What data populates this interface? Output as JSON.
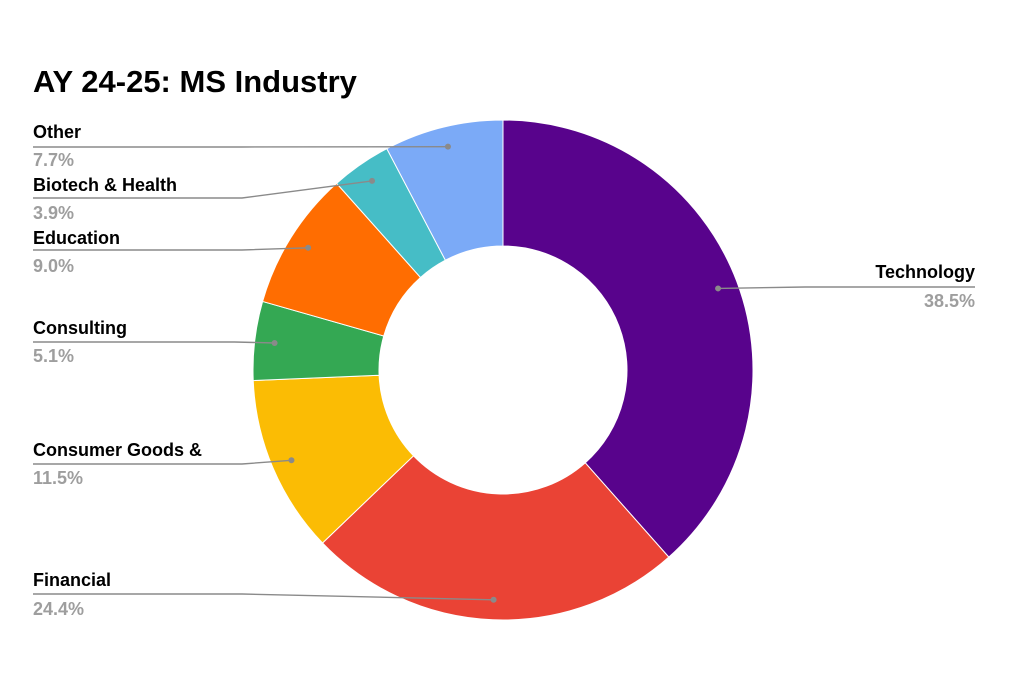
{
  "chart_data": {
    "type": "pie",
    "variant": "donut",
    "title": "AY 24-25: MS Industry",
    "legend": "none",
    "slices": [
      {
        "name": "Technology",
        "label": "Technology",
        "value": 38.5,
        "value_label": "38.5%",
        "color": "#58038c"
      },
      {
        "name": "Financial",
        "label": "Financial",
        "value": 24.4,
        "value_label": "24.4%",
        "color": "#ea4335"
      },
      {
        "name": "Consumer Goods &",
        "label": "Consumer Goods &",
        "value": 11.5,
        "value_label": "11.5%",
        "color": "#fbbc04"
      },
      {
        "name": "Consulting",
        "label": "Consulting",
        "value": 5.1,
        "value_label": "5.1%",
        "color": "#34a853"
      },
      {
        "name": "Education",
        "label": "Education",
        "value": 9.0,
        "value_label": "9.0%",
        "color": "#ff6d01"
      },
      {
        "name": "Biotech & Health",
        "label": "Biotech & Health",
        "value": 3.9,
        "value_label": "3.9%",
        "color": "#46bdc6"
      },
      {
        "name": "Other",
        "label": "Other",
        "value": 7.7,
        "value_label": "7.7%",
        "color": "#7baaf7"
      }
    ]
  }
}
